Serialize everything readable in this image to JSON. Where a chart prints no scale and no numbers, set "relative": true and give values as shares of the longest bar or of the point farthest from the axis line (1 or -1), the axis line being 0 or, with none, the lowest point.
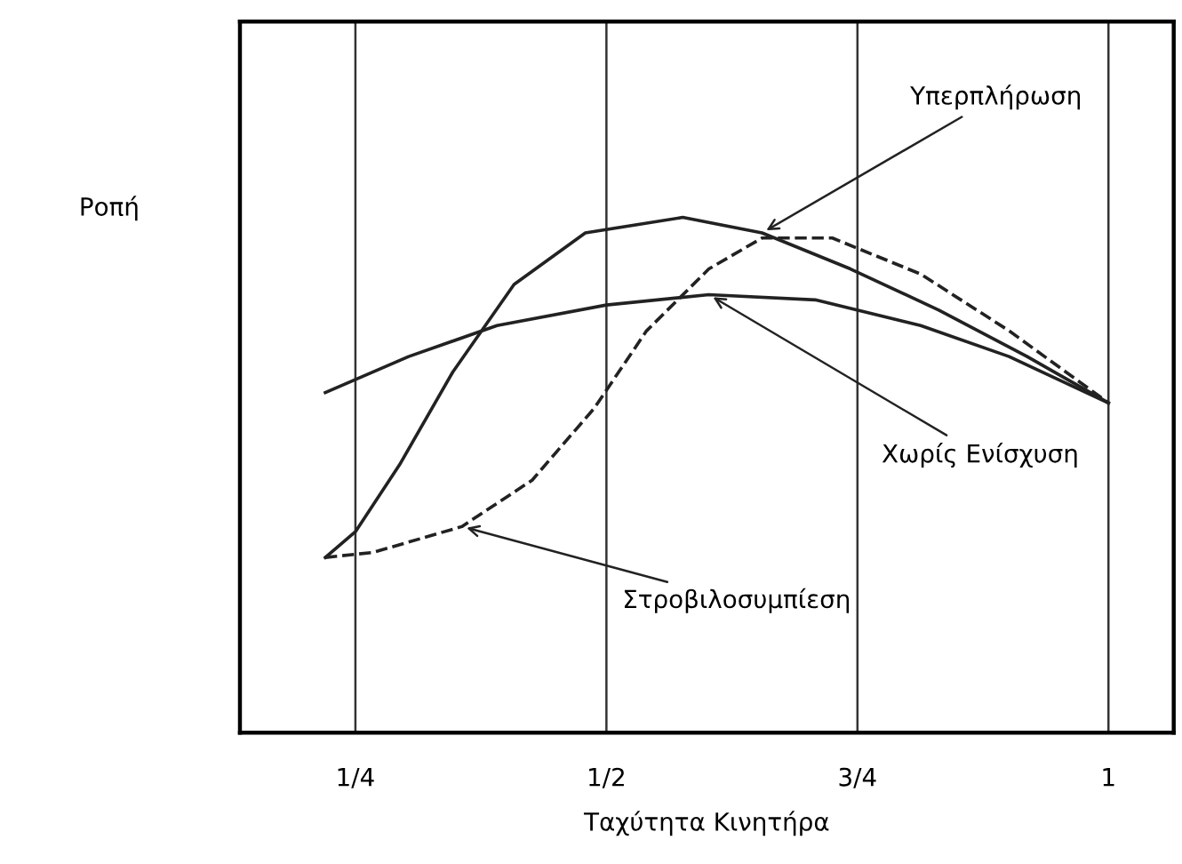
{
  "chart_data": {
    "type": "line",
    "relative": true,
    "xlabel": "Ταχύτητα Κινητήρα",
    "ylabel": "Ροπή",
    "xlim": [
      0.135,
      1.065
    ],
    "xticks": [
      {
        "value": 0.25,
        "label": "1/4"
      },
      {
        "value": 0.5,
        "label": "1/2"
      },
      {
        "value": 0.75,
        "label": "3/4"
      },
      {
        "value": 1,
        "label": "1"
      }
    ],
    "grid": "x",
    "tick_labels": "x",
    "marker": "none",
    "series": [
      {
        "color": "#222222",
        "line_style": "solid",
        "x": [
          0.22,
          0.303,
          0.391,
          0.5,
          0.602,
          0.708,
          0.813,
          0.901,
          1.0
        ],
        "values": [
          0.66,
          0.73,
          0.79,
          0.83,
          0.85,
          0.84,
          0.79,
          0.73,
          0.64
        ]
      },
      {
        "color": "#222222",
        "line_style": "solid",
        "x": [
          0.22,
          0.25,
          0.294,
          0.347,
          0.408,
          0.479,
          0.576,
          0.655,
          0.743,
          0.831,
          0.919,
          1.0
        ],
        "values": [
          0.34,
          0.39,
          0.52,
          0.7,
          0.87,
          0.97,
          1.0,
          0.97,
          0.9,
          0.82,
          0.73,
          0.64
        ]
      },
      {
        "color": "#222222",
        "line_style": "dashed",
        "x": [
          0.22,
          0.268,
          0.356,
          0.426,
          0.488,
          0.54,
          0.602,
          0.655,
          0.725,
          0.813,
          0.901,
          1.0
        ],
        "values": [
          0.34,
          0.35,
          0.4,
          0.49,
          0.63,
          0.78,
          0.9,
          0.96,
          0.96,
          0.89,
          0.78,
          0.64
        ]
      }
    ],
    "annotations": [
      {
        "text": "Υπερπλήρωση",
        "x": 0.655,
        "y": 0.97
      },
      {
        "text": "Χωρίς Ενίσχυση",
        "x": 0.602,
        "y": 0.85
      },
      {
        "text": "Στροβιλοσυμπίεση",
        "x": 0.356,
        "y": 0.4
      }
    ]
  }
}
